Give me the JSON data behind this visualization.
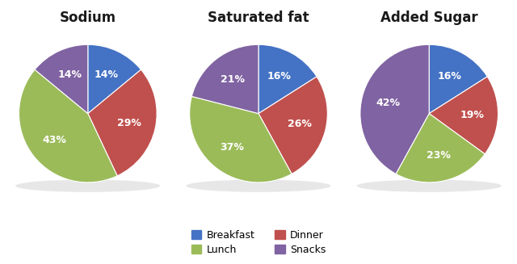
{
  "charts": [
    {
      "title": "Sodium",
      "values": [
        14,
        29,
        43,
        14
      ],
      "labels": [
        "14%",
        "29%",
        "43%",
        "14%"
      ],
      "startangle": 90
    },
    {
      "title": "Saturated fat",
      "values": [
        16,
        26,
        37,
        21
      ],
      "labels": [
        "16%",
        "26%",
        "37%",
        "21%"
      ],
      "startangle": 90
    },
    {
      "title": "Added Sugar",
      "values": [
        16,
        19,
        23,
        42
      ],
      "labels": [
        "16%",
        "19%",
        "23%",
        "42%"
      ],
      "startangle": 90
    }
  ],
  "colors": [
    "#4472C4",
    "#C0504D",
    "#9BBB59",
    "#8063A2"
  ],
  "legend_labels": [
    "Breakfast",
    "Dinner",
    "Lunch",
    "Snacks"
  ],
  "background_color": "#ffffff",
  "title_fontsize": 12,
  "label_fontsize": 9
}
